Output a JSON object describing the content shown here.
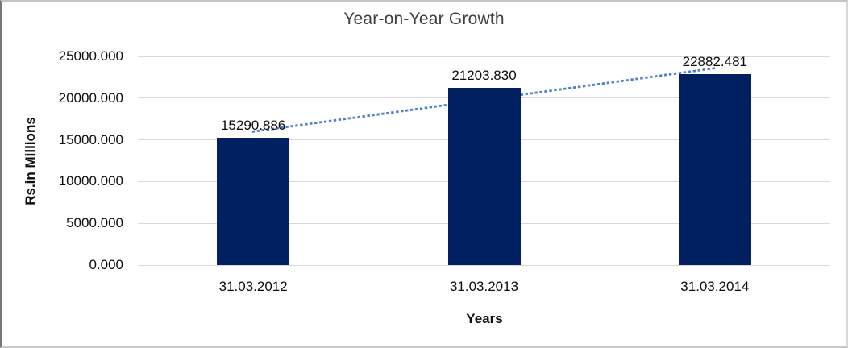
{
  "chart_data": {
    "type": "bar",
    "title": "Year-on-Year Growth",
    "categories": [
      "31.03.2012",
      "31.03.2013",
      "31.03.2014"
    ],
    "values": [
      15290.886,
      21203.83,
      22882.481
    ],
    "data_labels": [
      "15290.886",
      "21203.830",
      "22882.481"
    ],
    "xlabel": "Years",
    "ylabel": "Rs.in Millions",
    "ylim": [
      0,
      25000
    ],
    "y_ticks": [
      0,
      5000,
      10000,
      15000,
      20000,
      25000
    ],
    "y_tick_labels": [
      "0.000",
      "5000.000",
      "10000.000",
      "15000.000",
      "20000.000",
      "25000.000"
    ],
    "grid": true,
    "legend": "none",
    "trendline": {
      "type": "linear",
      "style": "dotted"
    },
    "colors": {
      "bar": "#002060",
      "trendline": "#4e81c2",
      "gridline": "#d9d9d9",
      "title_text": "#3d3d3d",
      "label_text": "#0d0d0d"
    }
  }
}
